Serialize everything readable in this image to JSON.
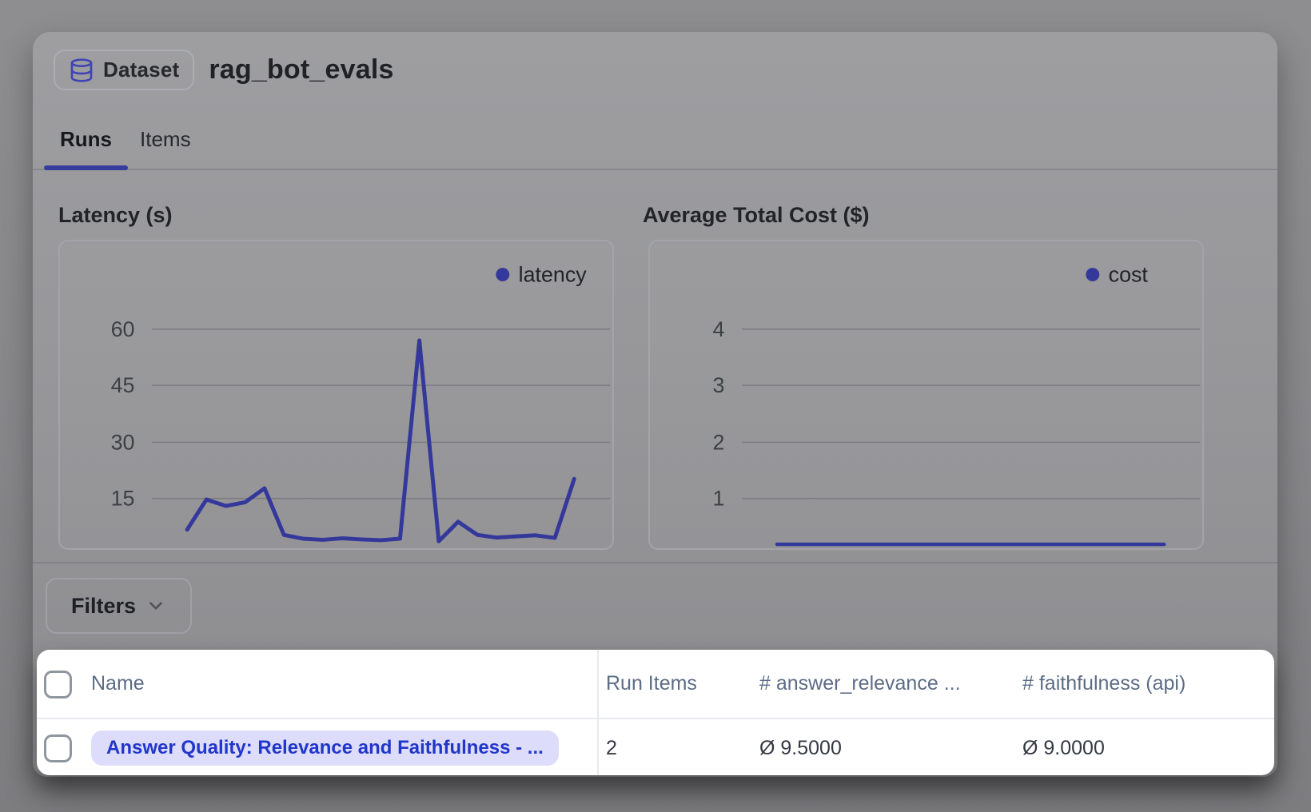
{
  "colors": {
    "accent_indigo": "#35389b",
    "tab_underline": "#383b9e",
    "link_blue": "#2136ca",
    "pill_bg": "#dddcfa",
    "table_header_text": "#5d6d86",
    "gridline": "#7b7d81",
    "tick_text": "#3c3f44",
    "legend_text": "#212327"
  },
  "header": {
    "badge_label": "Dataset",
    "title": "rag_bot_evals"
  },
  "tabs": {
    "runs": "Runs",
    "items": "Items"
  },
  "filters": {
    "label": "Filters"
  },
  "chart_data": [
    {
      "type": "line",
      "title": "Latency (s)",
      "legend": "latency",
      "legend_position": "top-right",
      "grid": true,
      "yticks": [
        60,
        45,
        30,
        15
      ],
      "ylim": [
        0,
        67
      ],
      "series": [
        {
          "name": "latency",
          "values": [
            6.7,
            14.7,
            13.0,
            14.0,
            17.7,
            5.3,
            4.3,
            4.0,
            4.4,
            4.1,
            3.9,
            4.3,
            57.0,
            3.6,
            8.8,
            5.3,
            4.6,
            4.9,
            5.2,
            4.5,
            20.2
          ]
        }
      ]
    },
    {
      "type": "line",
      "title": "Average Total Cost ($)",
      "legend": "cost",
      "legend_position": "top-right",
      "grid": true,
      "yticks": [
        4,
        3,
        2,
        1
      ],
      "ylim": [
        0,
        4.5
      ],
      "series": [
        {
          "name": "cost",
          "values": [
            0.02,
            0.02,
            0.02,
            0.02,
            0.02,
            0.02,
            0.02,
            0.02,
            0.02,
            0.02,
            0.02,
            0.02,
            0.02,
            0.02,
            0.02,
            0.02,
            0.02,
            0.02,
            0.02,
            0.02,
            0.02
          ]
        }
      ]
    }
  ],
  "table": {
    "columns": [
      {
        "label": "Name"
      },
      {
        "label": "Run Items"
      },
      {
        "label": "# answer_relevance ..."
      },
      {
        "label": "# faithfulness (api)"
      }
    ],
    "rows": [
      {
        "name": "Answer Quality: Relevance and Faithfulness - ...",
        "run_items": "2",
        "answer_relevance": "Ø 9.5000",
        "faithfulness": "Ø 9.0000"
      }
    ]
  }
}
